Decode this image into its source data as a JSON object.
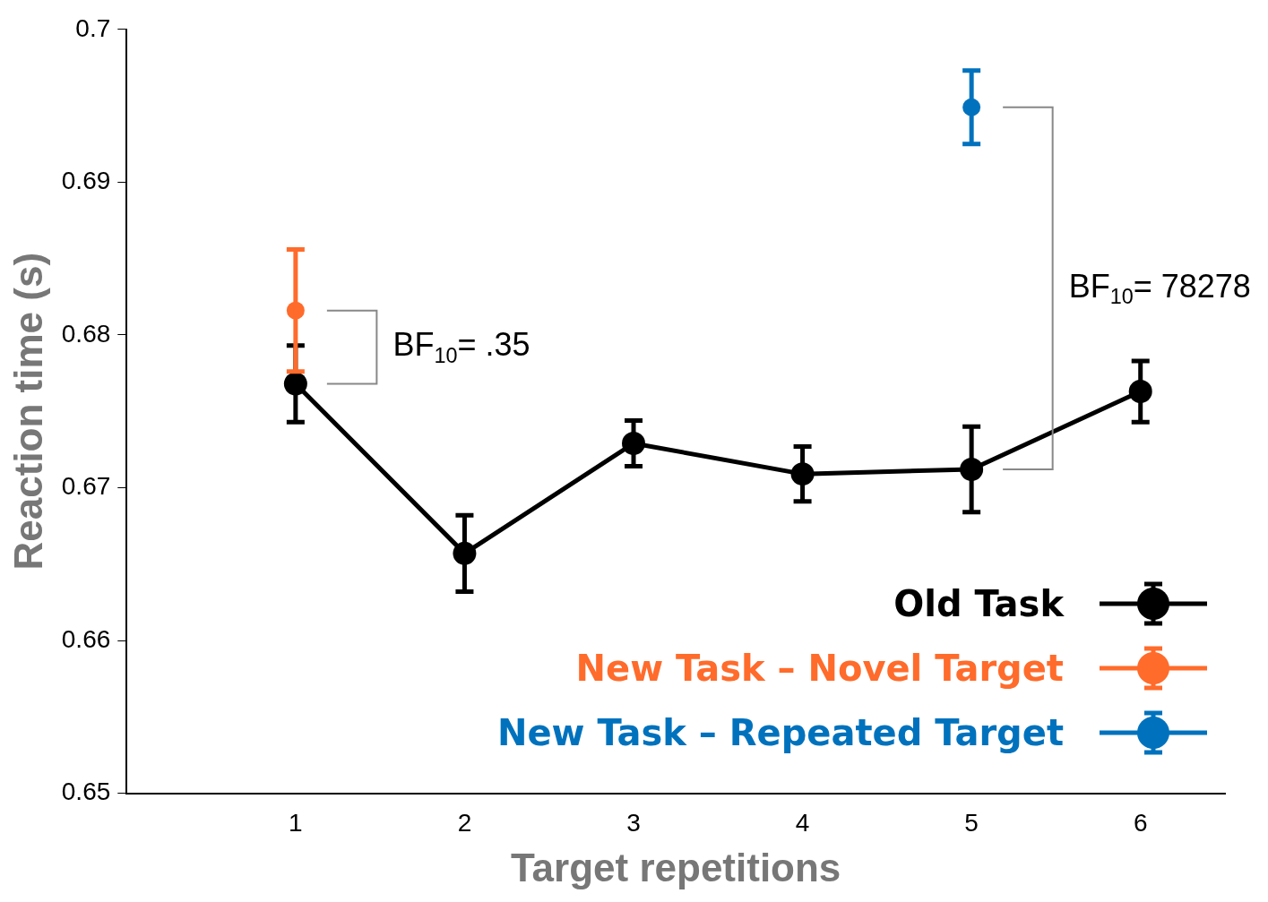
{
  "chart_data": {
    "type": "line",
    "xlabel": "Target repetitions",
    "ylabel": "Reaction time (s)",
    "x": [
      1,
      2,
      3,
      4,
      5,
      6
    ],
    "series": [
      {
        "name": "Old Task",
        "color": "#000000",
        "values": [
          0.6768,
          0.6657,
          0.6729,
          0.6709,
          0.6712,
          0.6763
        ],
        "errors": [
          0.0025,
          0.0025,
          0.0015,
          0.0018,
          0.0028,
          0.002
        ]
      },
      {
        "name": "New Task – Novel Target",
        "color": "#ff6b2b",
        "x": [
          1
        ],
        "values": [
          0.6816
        ],
        "errors": [
          0.004
        ]
      },
      {
        "name": "New Task – Repeated Target",
        "color": "#0072bd",
        "x": [
          5
        ],
        "values": [
          0.6949
        ],
        "errors": [
          0.0024
        ]
      }
    ],
    "xlim": [
      0,
      6.5
    ],
    "xticks": [
      1,
      2,
      3,
      4,
      5,
      6
    ],
    "ylim": [
      0.65,
      0.7
    ],
    "yticks": [
      0.65,
      0.66,
      0.67,
      0.68,
      0.69,
      0.7
    ],
    "marker": "circle",
    "legend": "bottom right",
    "grid": false,
    "annotations": [
      "BF$_{10}$= .35",
      "BF$_{10}$= 78278"
    ]
  }
}
